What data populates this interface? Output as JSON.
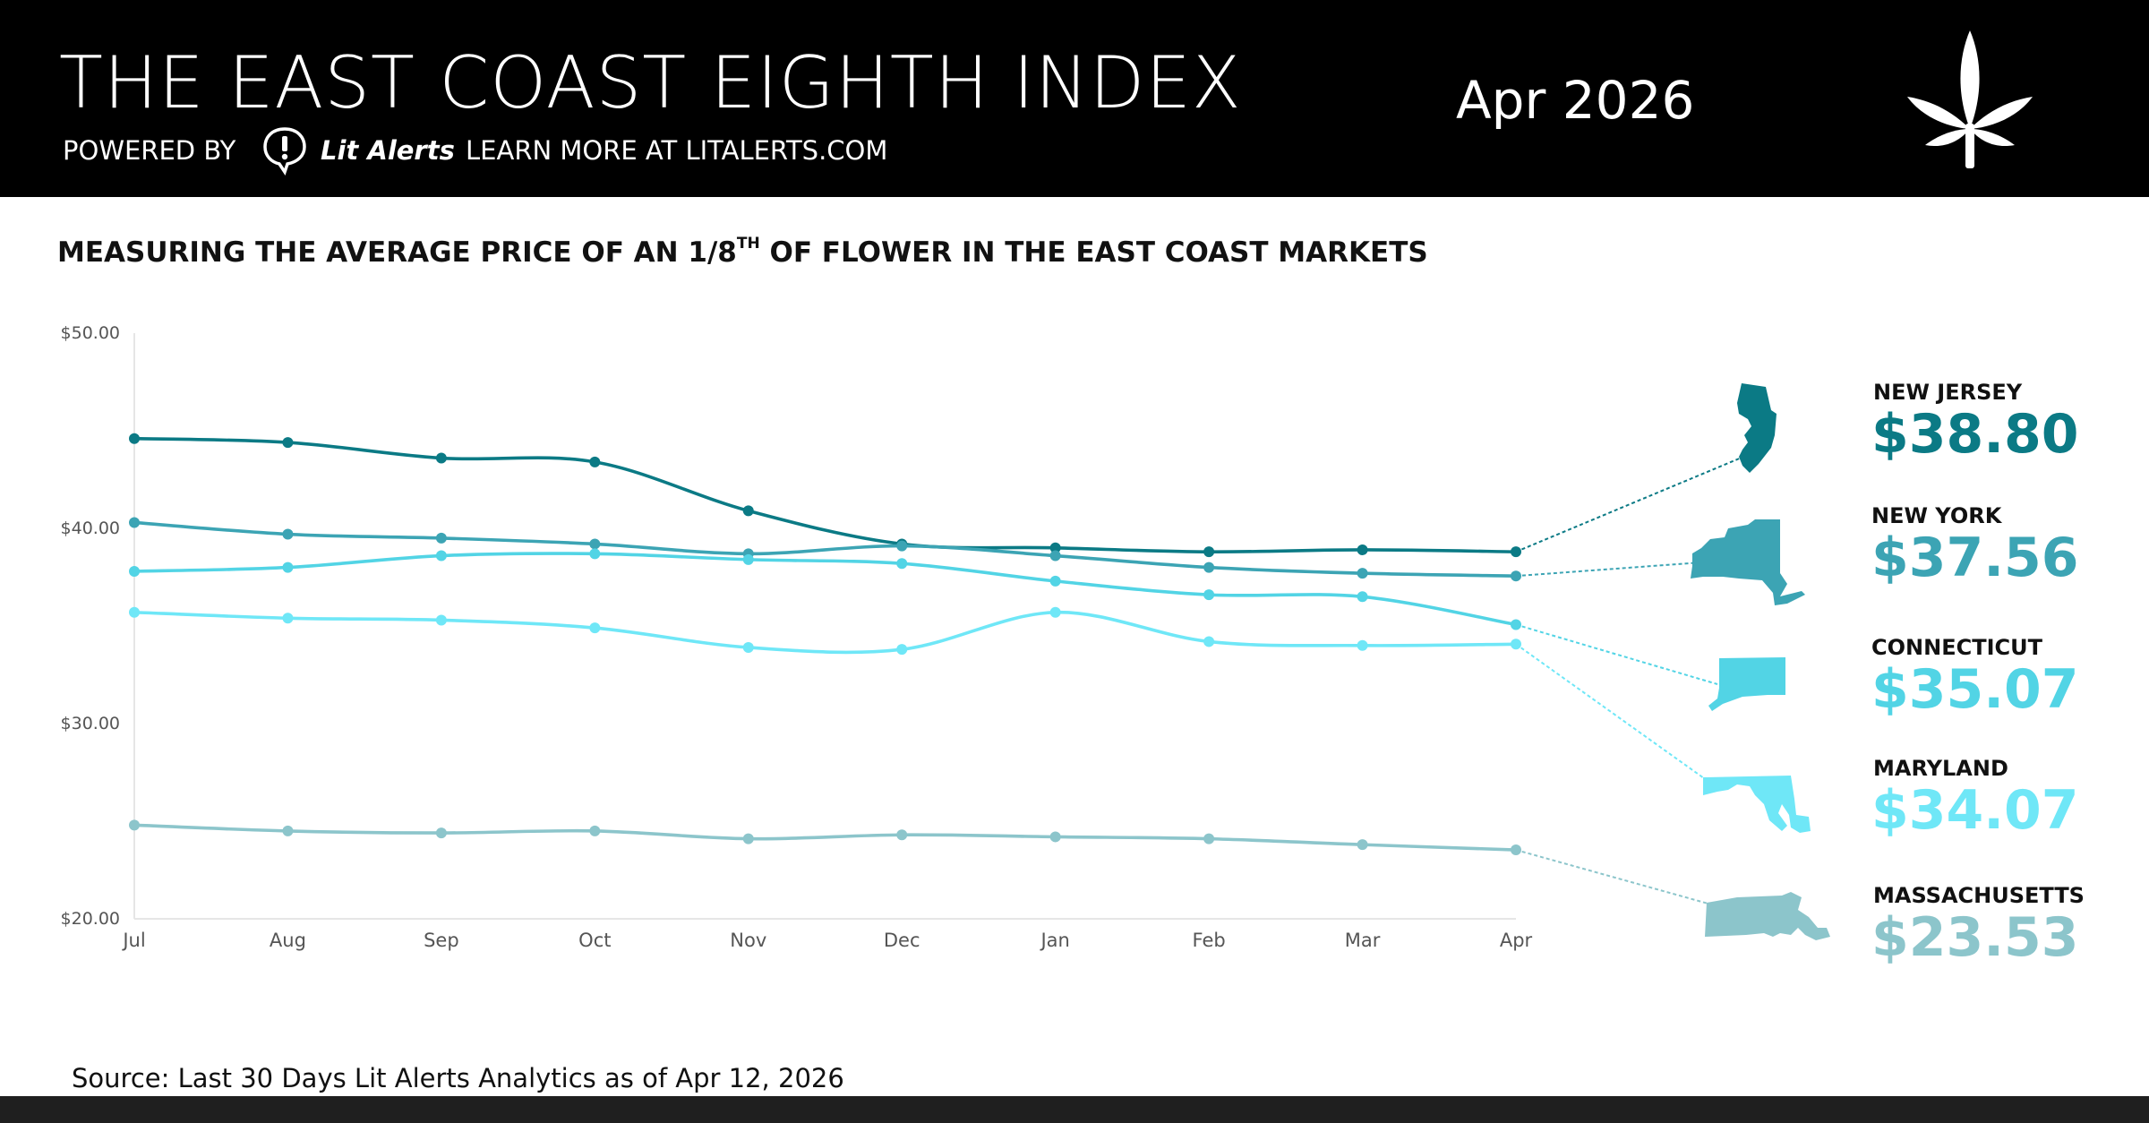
{
  "header": {
    "title": "THE EAST COAST EIGHTH INDEX",
    "date": "Apr 2026",
    "powered_by": "POWERED BY",
    "brand": "Lit Alerts",
    "learn_more": "LEARN MORE AT LITALERTS.COM",
    "logo_icon": "cannabis-leaf-icon"
  },
  "subtitle": {
    "before": "MEASURING THE AVERAGE PRICE OF AN 1/8",
    "sup": "TH",
    "after": " OF FLOWER IN THE EAST COAST MARKETS"
  },
  "chart_data": {
    "type": "line",
    "x": [
      "Jul",
      "Aug",
      "Sep",
      "Oct",
      "Nov",
      "Dec",
      "Jan",
      "Feb",
      "Mar",
      "Apr"
    ],
    "ylim": [
      20,
      50
    ],
    "yticks": [
      "$20.00",
      "$30.00",
      "$40.00",
      "$50.00"
    ],
    "series": [
      {
        "name": "NEW JERSEY",
        "price": "$38.80",
        "color": "#0b7a85",
        "values": [
          44.6,
          44.4,
          43.6,
          43.4,
          40.9,
          39.2,
          39.0,
          38.8,
          38.9,
          38.8
        ]
      },
      {
        "name": "NEW YORK",
        "price": "$37.56",
        "color": "#3ca4b4",
        "values": [
          40.3,
          39.7,
          39.5,
          39.2,
          38.7,
          39.1,
          38.6,
          38.0,
          37.7,
          37.56
        ]
      },
      {
        "name": "CONNECTICUT",
        "price": "$35.07",
        "color": "#52d4e5",
        "values": [
          37.8,
          38.0,
          38.6,
          38.7,
          38.4,
          38.2,
          37.3,
          36.6,
          36.5,
          35.07
        ]
      },
      {
        "name": "MARYLAND",
        "price": "$34.07",
        "color": "#6fe7f7",
        "values": [
          35.7,
          35.4,
          35.3,
          34.9,
          33.9,
          33.8,
          35.7,
          34.2,
          34.0,
          34.07
        ]
      },
      {
        "name": "MASSACHUSETTS",
        "price": "$23.53",
        "color": "#8cc5cb",
        "values": [
          24.8,
          24.5,
          24.4,
          24.5,
          24.1,
          24.3,
          24.2,
          24.1,
          23.8,
          23.53
        ]
      }
    ]
  },
  "source": "Source: Last 30 Days Lit Alerts Analytics as of Apr 12, 2026"
}
